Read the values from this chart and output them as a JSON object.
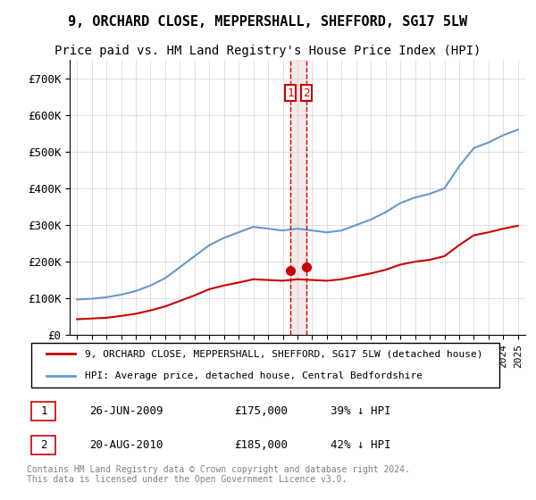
{
  "title": "9, ORCHARD CLOSE, MEPPERSHALL, SHEFFORD, SG17 5LW",
  "subtitle": "Price paid vs. HM Land Registry's House Price Index (HPI)",
  "title_fontsize": 11,
  "subtitle_fontsize": 10,
  "legend_label_red": "9, ORCHARD CLOSE, MEPPERSHALL, SHEFFORD, SG17 5LW (detached house)",
  "legend_label_blue": "HPI: Average price, detached house, Central Bedfordshire",
  "footnote": "Contains HM Land Registry data © Crown copyright and database right 2024.\nThis data is licensed under the Open Government Licence v3.0.",
  "point1_label": "1",
  "point1_date": "26-JUN-2009",
  "point1_price": "£175,000",
  "point1_hpi": "39% ↓ HPI",
  "point2_label": "2",
  "point2_date": "20-AUG-2010",
  "point2_price": "£185,000",
  "point2_hpi": "42% ↓ HPI",
  "color_red": "#cc0000",
  "color_blue": "#6699cc",
  "color_vline": "#cc0000",
  "color_vline_fill": "#ddaaaa",
  "ylim": [
    0,
    750000
  ],
  "yticks": [
    0,
    100000,
    200000,
    300000,
    400000,
    500000,
    600000,
    700000
  ],
  "ytick_labels": [
    "£0",
    "£100K",
    "£200K",
    "£300K",
    "£400K",
    "£500K",
    "£600K",
    "£700K"
  ],
  "hpi_years": [
    1995,
    1996,
    1997,
    1998,
    1999,
    2000,
    2001,
    2002,
    2003,
    2004,
    2005,
    2006,
    2007,
    2008,
    2009,
    2010,
    2011,
    2012,
    2013,
    2014,
    2015,
    2016,
    2017,
    2018,
    2019,
    2020,
    2021,
    2022,
    2023,
    2024,
    2025
  ],
  "hpi_values": [
    97000,
    99000,
    103000,
    110000,
    120000,
    135000,
    155000,
    185000,
    215000,
    245000,
    265000,
    280000,
    295000,
    290000,
    285000,
    290000,
    285000,
    280000,
    285000,
    300000,
    315000,
    335000,
    360000,
    375000,
    385000,
    400000,
    460000,
    510000,
    525000,
    545000,
    560000
  ],
  "price_years": [
    1995,
    1996,
    1997,
    1998,
    1999,
    2000,
    2001,
    2002,
    2003,
    2004,
    2005,
    2006,
    2007,
    2008,
    2009,
    2010,
    2011,
    2012,
    2013,
    2014,
    2015,
    2016,
    2017,
    2018,
    2019,
    2020,
    2021,
    2022,
    2023,
    2024,
    2025
  ],
  "price_values": [
    43000,
    45000,
    47000,
    52000,
    58000,
    67000,
    78000,
    93000,
    108000,
    125000,
    135000,
    143000,
    152000,
    150000,
    148000,
    152000,
    150000,
    148000,
    152000,
    160000,
    168000,
    178000,
    192000,
    200000,
    205000,
    215000,
    245000,
    272000,
    280000,
    290000,
    298000
  ],
  "vline_x1": 2009.5,
  "vline_x2": 2010.6,
  "point1_x": 2009.5,
  "point1_y": 175000,
  "point2_x": 2010.6,
  "point2_y": 185000,
  "xmin": 1994.5,
  "xmax": 2025.5
}
